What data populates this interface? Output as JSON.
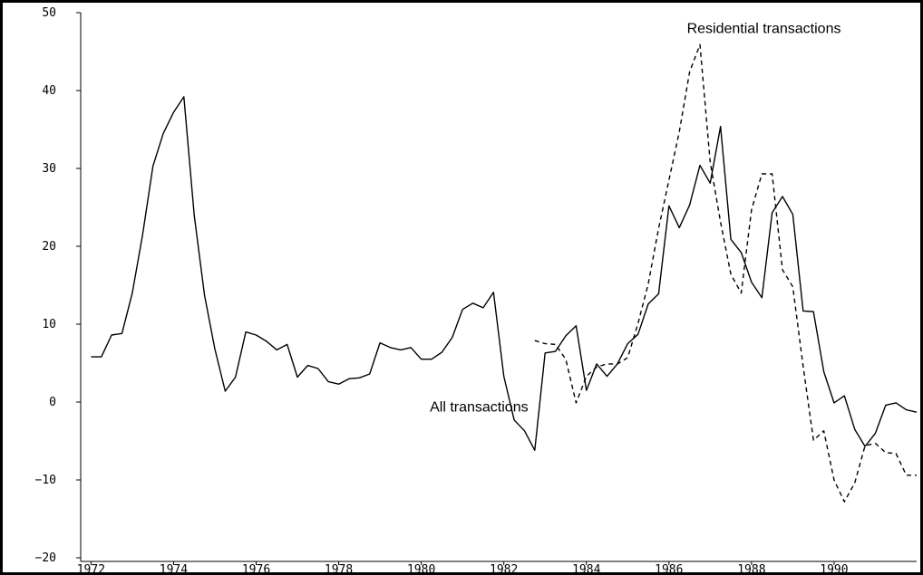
{
  "chart_data": {
    "type": "line",
    "title": "",
    "xlabel": "",
    "ylabel": "",
    "xlim": [
      1971.75,
      1992.0
    ],
    "ylim": [
      -20,
      50
    ],
    "y_ticks": [
      -20,
      -10,
      0,
      10,
      20,
      30,
      40,
      50
    ],
    "y_tick_labels": [
      "−20",
      "−10",
      "0",
      "10",
      "20",
      "30",
      "40",
      "50"
    ],
    "x_ticks": [
      1972,
      1974,
      1976,
      1978,
      1980,
      1982,
      1984,
      1986,
      1988,
      1990
    ],
    "x_tick_labels": [
      "1972",
      "1974",
      "1976",
      "1978",
      "1980",
      "1982",
      "1984",
      "1986",
      "1988",
      "1990"
    ],
    "grid": false,
    "legend": "none",
    "annotations": [
      {
        "text": "All transactions",
        "x": 1981.4,
        "y": -1.2
      },
      {
        "text": "Residential transactions",
        "x": 1988.3,
        "y": 47.4
      }
    ],
    "series": [
      {
        "name": "All transactions",
        "line_style": "solid",
        "color": "#000000",
        "x": [
          1972.0,
          1972.25,
          1972.5,
          1972.75,
          1973.0,
          1973.25,
          1973.5,
          1973.75,
          1974.0,
          1974.25,
          1974.5,
          1974.75,
          1975.0,
          1975.25,
          1975.5,
          1975.75,
          1976.0,
          1976.25,
          1976.5,
          1976.75,
          1977.0,
          1977.25,
          1977.5,
          1977.75,
          1978.0,
          1978.25,
          1978.5,
          1978.75,
          1979.0,
          1979.25,
          1979.5,
          1979.75,
          1980.0,
          1980.25,
          1980.5,
          1980.75,
          1981.0,
          1981.25,
          1981.5,
          1981.75,
          1982.0,
          1982.25,
          1982.5,
          1982.75,
          1983.0,
          1983.25,
          1983.5,
          1983.75,
          1984.0,
          1984.25,
          1984.5,
          1984.75,
          1985.0,
          1985.25,
          1985.5,
          1985.75,
          1986.0,
          1986.25,
          1986.5,
          1986.75,
          1987.0,
          1987.25,
          1987.5,
          1987.75,
          1988.0,
          1988.25,
          1988.5,
          1988.75,
          1989.0,
          1989.25,
          1989.5,
          1989.75,
          1990.0,
          1990.25,
          1990.5,
          1990.75,
          1991.0,
          1991.25,
          1991.5,
          1991.75,
          1992.0
        ],
        "y": [
          5.8,
          5.8,
          8.6,
          8.8,
          14.0,
          21.5,
          30.3,
          34.5,
          37.2,
          39.2,
          24.0,
          13.7,
          6.8,
          1.4,
          3.2,
          9.0,
          8.6,
          7.8,
          6.7,
          7.4,
          3.2,
          4.7,
          4.3,
          2.6,
          2.3,
          3.0,
          3.1,
          3.6,
          7.6,
          7.0,
          6.7,
          7.0,
          5.5,
          5.5,
          6.4,
          8.3,
          11.9,
          12.7,
          12.1,
          14.1,
          3.3,
          -2.3,
          -3.7,
          -6.2,
          6.3,
          6.5,
          8.5,
          9.8,
          1.5,
          4.9,
          3.3,
          4.9,
          7.5,
          8.7,
          12.6,
          13.9,
          25.2,
          22.4,
          25.3,
          30.4,
          28.1,
          35.4,
          20.9,
          19.2,
          15.4,
          13.4,
          24.3,
          26.4,
          24.1,
          11.7,
          11.6,
          3.9,
          -0.1,
          0.8,
          -3.5,
          -5.7,
          -4.0,
          -0.4,
          -0.1,
          -1.0,
          -1.3
        ]
      },
      {
        "name": "Residential transactions",
        "line_style": "dashed",
        "color": "#000000",
        "x": [
          1982.75,
          1983.0,
          1983.25,
          1983.5,
          1983.75,
          1984.0,
          1984.25,
          1984.5,
          1984.75,
          1985.0,
          1985.25,
          1985.5,
          1985.75,
          1986.0,
          1986.25,
          1986.5,
          1986.75,
          1987.0,
          1987.25,
          1987.5,
          1987.75,
          1988.0,
          1988.25,
          1988.5,
          1988.75,
          1989.0,
          1989.25,
          1989.5,
          1989.75,
          1990.0,
          1990.25,
          1990.5,
          1990.75,
          1991.0,
          1991.25,
          1991.5,
          1991.75,
          1992.0
        ],
        "y": [
          7.9,
          7.5,
          7.4,
          5.5,
          -0.1,
          3.3,
          4.5,
          4.9,
          4.9,
          5.7,
          10.1,
          15.2,
          22.3,
          28.5,
          34.7,
          42.4,
          45.9,
          30.8,
          23.1,
          16.4,
          14.0,
          24.7,
          29.3,
          29.3,
          17.0,
          14.8,
          4.6,
          -4.9,
          -3.7,
          -10.0,
          -12.8,
          -10.4,
          -5.6,
          -5.3,
          -6.5,
          -6.6,
          -9.4,
          -9.4
        ]
      }
    ]
  }
}
